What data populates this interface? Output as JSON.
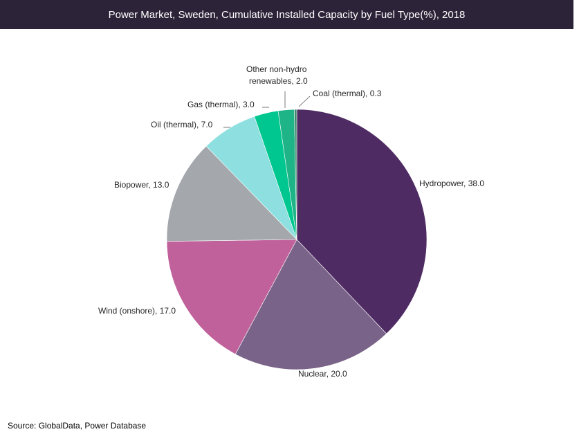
{
  "title": "Power Market, Sweden, Cumulative Installed Capacity by Fuel Type(%), 2018",
  "source": "Source: GlobalData, Power Database",
  "chart_data": {
    "type": "pie",
    "title": "Power Market, Sweden, Cumulative Installed Capacity by Fuel Type(%), 2018",
    "slices": [
      {
        "name": "Hydropower",
        "value": 38.0,
        "label": "Hydropower, 38.0",
        "color": "#4f2b63"
      },
      {
        "name": "Nuclear",
        "value": 20.0,
        "label": "Nuclear, 20.0",
        "color": "#7a6389"
      },
      {
        "name": "Wind (onshore)",
        "value": 17.0,
        "label": "Wind (onshore),  17.0",
        "color": "#c0619c"
      },
      {
        "name": "Biopower",
        "value": 13.0,
        "label": "Biopower, 13.0",
        "color": "#a4a8ac"
      },
      {
        "name": "Oil (thermal)",
        "value": 7.0,
        "label": "Oil (thermal), 7.0",
        "color": "#8edfe0"
      },
      {
        "name": "Gas (thermal)",
        "value": 3.0,
        "label": "Gas (thermal), 3.0",
        "color": "#00c68f"
      },
      {
        "name": "Other non-hydro renewables",
        "value": 2.0,
        "label": [
          "Other non-hydro",
          "renewables, 2.0"
        ],
        "color": "#1fb488"
      },
      {
        "name": "Coal (thermal)",
        "value": 0.3,
        "label": "Coal (thermal), 0.3",
        "color": "#3c8a6e"
      }
    ]
  }
}
